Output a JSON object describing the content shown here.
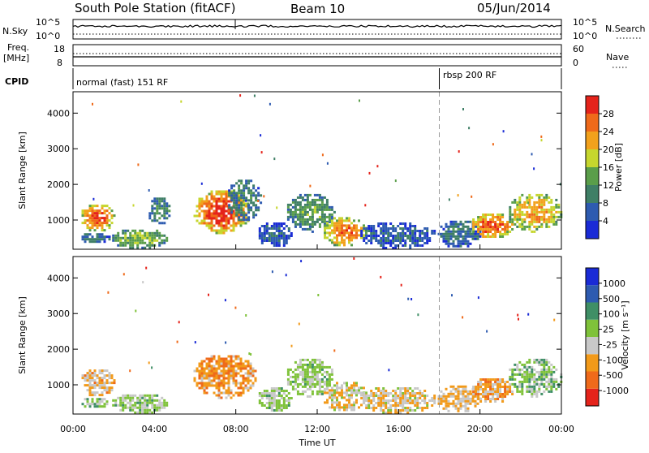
{
  "header": {
    "station": "South Pole Station (fitACF)",
    "beam": "Beam 10",
    "date": "05/Jun/2014"
  },
  "top_panels": {
    "nsky_label": "N.Sky",
    "nsky_ticks": [
      "10^5",
      "10^0"
    ],
    "nsearch_label": "N.Search",
    "nsearch_ticks": [
      "10^5",
      "10^0"
    ],
    "freq_label": "Freq.",
    "freq_unit": "[MHz]",
    "freq_ticks": [
      "18",
      "8"
    ],
    "nave_label": "Nave",
    "nave_ticks": [
      "60",
      "0"
    ],
    "cpid_label": "CPID",
    "cpid_segments": [
      {
        "label": "normal (fast) 151 RF",
        "start": "00:00",
        "end": "18:00"
      },
      {
        "label": "rbsp 200 RF",
        "start": "18:00",
        "end": "24:00"
      }
    ]
  },
  "x_axis": {
    "title": "Time UT",
    "ticks": [
      "00:00",
      "04:00",
      "08:00",
      "12:00",
      "16:00",
      "20:00",
      "00:00"
    ],
    "range_hours": [
      0,
      24
    ]
  },
  "power_panel": {
    "ylabel": "Slant Range [km]",
    "yticks": [
      "4000",
      "3000",
      "2000",
      "1000"
    ],
    "colorbar_label": "Power [dB]",
    "colorbar_ticks": [
      "28",
      "24",
      "20",
      "16",
      "12",
      "8",
      "4"
    ]
  },
  "velocity_panel": {
    "ylabel": "Slant Range [km]",
    "yticks": [
      "4000",
      "3000",
      "2000",
      "1000"
    ],
    "colorbar_label": "Velocity [m s⁻¹]",
    "colorbar_ticks": [
      "1000",
      "500",
      "100",
      "25",
      "-25",
      "-100",
      "-500",
      "-1000"
    ]
  },
  "colors": {
    "power_scale": [
      "#1a2bd6",
      "#2e5bb0",
      "#3f7f66",
      "#5a9e4a",
      "#c6d62e",
      "#f2a11c",
      "#ef6a1a",
      "#e5231b"
    ],
    "velocity_scale": [
      "#e5231b",
      "#ef6a1a",
      "#f29a1a",
      "#c8c8c8",
      "#7fc23a",
      "#3f8f66",
      "#2e5bb0",
      "#1a2bd6"
    ]
  },
  "chart_data": [
    {
      "type": "heatmap",
      "title": "Power",
      "x_unit": "hours UT",
      "y_unit": "km",
      "xlim": [
        0,
        24
      ],
      "ylim": [
        180,
        4600
      ],
      "value_range": [
        0,
        30
      ],
      "blobs": [
        {
          "t0": 0.3,
          "t1": 2.0,
          "r0": 700,
          "r1": 1500,
          "v": 24
        },
        {
          "t0": 0.3,
          "t1": 1.8,
          "r0": 380,
          "r1": 700,
          "v": 8
        },
        {
          "t0": 1.8,
          "t1": 4.6,
          "r0": 220,
          "r1": 800,
          "v": 14
        },
        {
          "t0": 3.6,
          "t1": 4.8,
          "r0": 900,
          "r1": 1700,
          "v": 10
        },
        {
          "t0": 5.8,
          "t1": 8.7,
          "r0": 650,
          "r1": 1900,
          "v": 26
        },
        {
          "t0": 7.5,
          "t1": 9.2,
          "r0": 1000,
          "r1": 2200,
          "v": 10
        },
        {
          "t0": 9.0,
          "t1": 10.7,
          "r0": 250,
          "r1": 1000,
          "v": 6
        },
        {
          "t0": 10.4,
          "t1": 12.8,
          "r0": 700,
          "r1": 1800,
          "v": 12
        },
        {
          "t0": 12.2,
          "t1": 14.4,
          "r0": 280,
          "r1": 1150,
          "v": 22
        },
        {
          "t0": 14.0,
          "t1": 17.8,
          "r0": 220,
          "r1": 1000,
          "v": 6
        },
        {
          "t0": 17.8,
          "t1": 20.0,
          "r0": 250,
          "r1": 1050,
          "v": 8
        },
        {
          "t0": 19.5,
          "t1": 21.6,
          "r0": 500,
          "r1": 1250,
          "v": 24
        },
        {
          "t0": 21.3,
          "t1": 24.0,
          "r0": 700,
          "r1": 1800,
          "v": 20
        }
      ],
      "cpid_change_hour": 18
    },
    {
      "type": "heatmap",
      "title": "Velocity",
      "x_unit": "hours UT",
      "y_unit": "km",
      "xlim": [
        0,
        24
      ],
      "ylim": [
        180,
        4600
      ],
      "value_range": [
        -1000,
        1000
      ],
      "blobs": [
        {
          "t0": 0.3,
          "t1": 2.0,
          "r0": 700,
          "r1": 1500,
          "v": -300
        },
        {
          "t0": 0.3,
          "t1": 1.8,
          "r0": 380,
          "r1": 700,
          "v": 80
        },
        {
          "t0": 1.8,
          "t1": 4.6,
          "r0": 220,
          "r1": 800,
          "v": 50
        },
        {
          "t0": 5.8,
          "t1": 9.0,
          "r0": 650,
          "r1": 1900,
          "v": -400
        },
        {
          "t0": 9.0,
          "t1": 10.7,
          "r0": 250,
          "r1": 1000,
          "v": 60
        },
        {
          "t0": 10.4,
          "t1": 12.8,
          "r0": 700,
          "r1": 1800,
          "v": 20
        },
        {
          "t0": 12.2,
          "t1": 14.4,
          "r0": 280,
          "r1": 1150,
          "v": -150
        },
        {
          "t0": 14.0,
          "t1": 17.8,
          "r0": 220,
          "r1": 1000,
          "v": -200
        },
        {
          "t0": 17.8,
          "t1": 20.0,
          "r0": 250,
          "r1": 1050,
          "v": -250
        },
        {
          "t0": 19.5,
          "t1": 21.6,
          "r0": 500,
          "r1": 1250,
          "v": -350
        },
        {
          "t0": 21.3,
          "t1": 24.0,
          "r0": 700,
          "r1": 1800,
          "v": 120
        }
      ],
      "cpid_change_hour": 18
    }
  ]
}
